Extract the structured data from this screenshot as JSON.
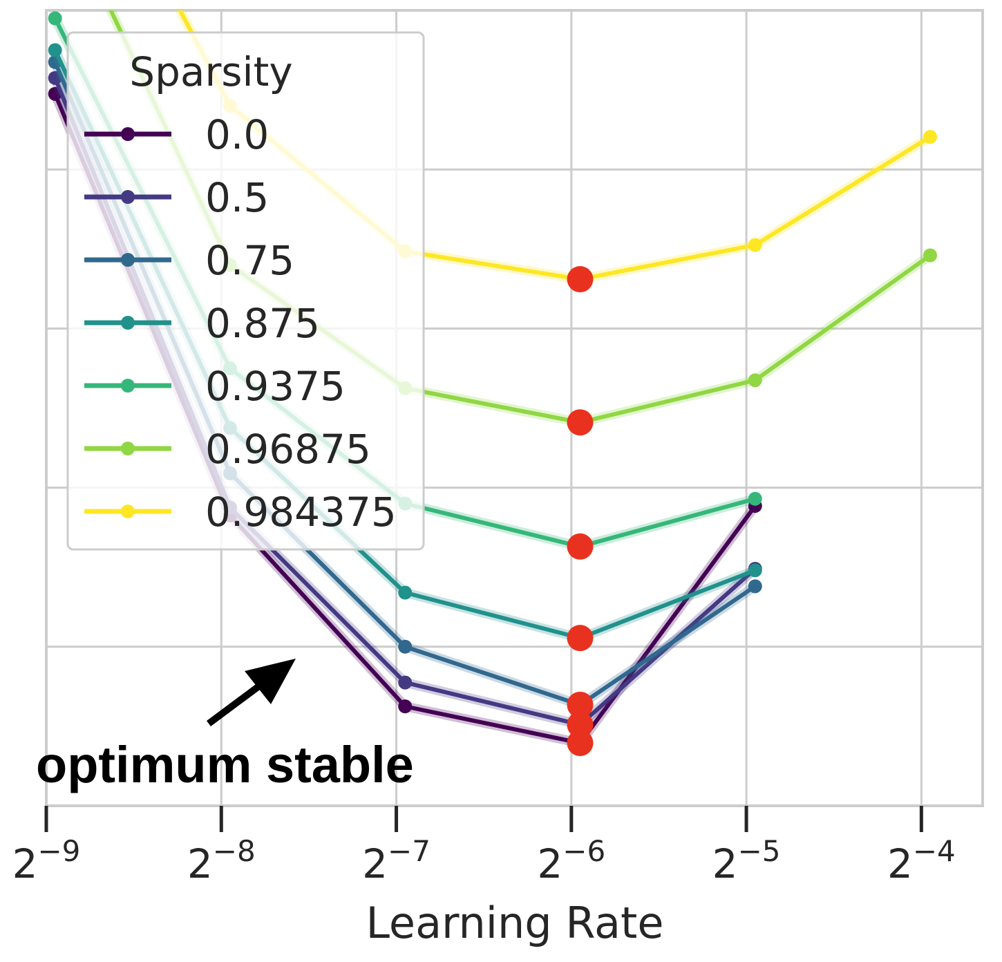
{
  "chart_data": {
    "type": "line",
    "title": "",
    "xlabel": "Learning Rate",
    "ylabel": "",
    "x_scale": "log2",
    "x_tick_labels": [
      {
        "base": "2",
        "exp": "−9"
      },
      {
        "base": "2",
        "exp": "−8"
      },
      {
        "base": "2",
        "exp": "−7"
      },
      {
        "base": "2",
        "exp": "−6"
      },
      {
        "base": "2",
        "exp": "−5"
      },
      {
        "base": "2",
        "exp": "−4"
      }
    ],
    "x_ticks_log2": [
      -9,
      -8,
      -7,
      -6,
      -5,
      -4
    ],
    "xlim_log2": [
      -9,
      -3.65
    ],
    "ylim": [
      0,
      1
    ],
    "grid": true,
    "y_tick_labels_shown": false,
    "legend": {
      "title": "Sparsity",
      "placement": "upper-left"
    },
    "optimum_marker_color": "#e8321f",
    "series": [
      {
        "name": "0.0",
        "color": "#440154",
        "x_log2": [
          -8.95,
          -7.95,
          -6.95,
          -5.95,
          -4.95
        ],
        "y": [
          0.895,
          0.365,
          0.125,
          0.079,
          0.377
        ],
        "optimum_index": 3
      },
      {
        "name": "0.5",
        "color": "#443983",
        "x_log2": [
          -8.95,
          -7.95,
          -6.95,
          -5.95,
          -4.95
        ],
        "y": [
          0.915,
          0.375,
          0.155,
          0.102,
          0.298
        ],
        "optimum_index": 3
      },
      {
        "name": "0.75",
        "color": "#31688e",
        "x_log2": [
          -8.95,
          -7.95,
          -6.95,
          -5.95,
          -4.95
        ],
        "y": [
          0.935,
          0.418,
          0.2,
          0.127,
          0.276
        ],
        "optimum_index": 3
      },
      {
        "name": "0.875",
        "color": "#21918c",
        "x_log2": [
          -8.95,
          -7.95,
          -6.95,
          -5.95,
          -4.95
        ],
        "y": [
          0.95,
          0.475,
          0.268,
          0.211,
          0.296
        ],
        "optimum_index": 3
      },
      {
        "name": "0.9375",
        "color": "#35b779",
        "x_log2": [
          -8.95,
          -7.95,
          -6.95,
          -5.95,
          -4.95
        ],
        "y": [
          0.99,
          0.55,
          0.38,
          0.326,
          0.386
        ],
        "optimum_index": 3
      },
      {
        "name": "0.96875",
        "color": "#90d743",
        "x_log2": [
          -8.95,
          -7.95,
          -6.95,
          -5.95,
          -4.95,
          -3.95
        ],
        "y": [
          1.15,
          0.68,
          0.525,
          0.482,
          0.535,
          0.692
        ],
        "optimum_index": 3
      },
      {
        "name": "0.984375",
        "color": "#fde725",
        "x_log2": [
          -8.95,
          -7.95,
          -6.95,
          -5.95,
          -4.95,
          -3.95
        ],
        "y": [
          1.3,
          0.88,
          0.697,
          0.662,
          0.705,
          0.841
        ],
        "optimum_index": 3
      }
    ],
    "annotation": {
      "text": "optimum stable",
      "arrow": true
    }
  }
}
